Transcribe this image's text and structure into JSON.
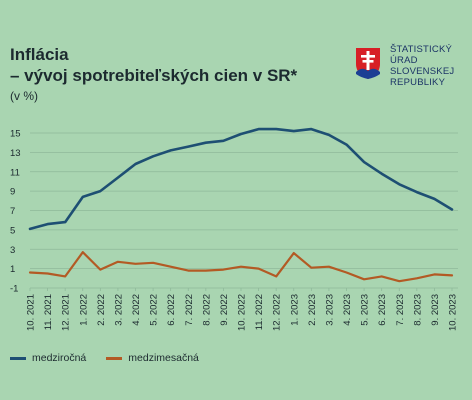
{
  "header": {
    "title_line1": "Inflácia",
    "title_line2": "– vývoj spotrebiteľských cien v SR*",
    "unit": "(v %)"
  },
  "logo": {
    "lines": [
      "ŠTATISTICKÝ",
      "ÚRAD",
      "SLOVENSKEJ",
      "REPUBLIKY"
    ],
    "icon": "slovak-coat-of-arms-icon",
    "color": "#1c3466"
  },
  "colors": {
    "background": "#a9d5b1",
    "series_yoy": "#1e4f73",
    "series_mom": "#b35a24"
  },
  "chart_data": {
    "type": "line",
    "title": "Inflácia – vývoj spotrebiteľských cien v SR*",
    "ylabel": "(v %)",
    "xlabel": "",
    "ylim": [
      -1,
      15
    ],
    "yticks": [
      -1,
      1,
      3,
      5,
      7,
      9,
      11,
      13,
      15
    ],
    "grid": true,
    "legend_position": "bottom-left",
    "categories": [
      "10. 2021",
      "11. 2021",
      "12. 2021",
      "1. 2022",
      "2. 2022",
      "3. 2022",
      "4. 2022",
      "5. 2022",
      "6. 2022",
      "7. 2022",
      "8. 2022",
      "9. 2022",
      "10. 2022",
      "11. 2022",
      "12. 2022",
      "1. 2023",
      "2. 2023",
      "3. 2023",
      "4. 2023",
      "5. 2023",
      "6. 2023",
      "7. 2023",
      "8. 2023",
      "9. 2023",
      "10. 2023"
    ],
    "series": [
      {
        "name": "medziročná",
        "color": "#1e4f73",
        "values": [
          5.1,
          5.6,
          5.8,
          8.4,
          9.0,
          10.4,
          11.8,
          12.6,
          13.2,
          13.6,
          14.0,
          14.2,
          14.9,
          15.4,
          15.4,
          15.2,
          15.4,
          14.8,
          13.8,
          12.0,
          10.8,
          9.7,
          8.9,
          8.2,
          7.1
        ]
      },
      {
        "name": "medzimesačná",
        "color": "#b35a24",
        "values": [
          0.6,
          0.5,
          0.2,
          2.7,
          0.9,
          1.7,
          1.5,
          1.6,
          1.2,
          0.8,
          0.8,
          0.9,
          1.2,
          1.0,
          0.2,
          2.6,
          1.1,
          1.2,
          0.6,
          -0.1,
          0.2,
          -0.3,
          0.0,
          0.4,
          0.3
        ]
      }
    ]
  }
}
